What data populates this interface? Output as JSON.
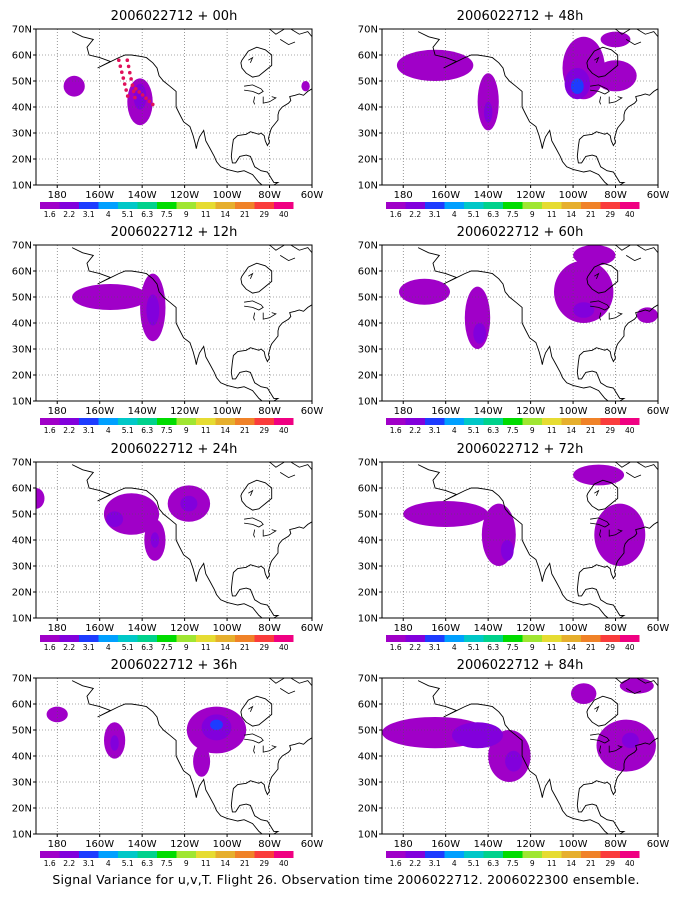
{
  "caption": "Signal Variance for u,v,T. Flight 26. Observation time 2006022712. 2006022300 ensemble.",
  "chart_data": {
    "type": "contour-map",
    "projection": "lon-lat",
    "region": {
      "lon_range": [
        170,
        300
      ],
      "lat_range": [
        10,
        70
      ]
    },
    "lon_ticks": [
      "180",
      "160W",
      "140W",
      "120W",
      "100W",
      "80W",
      "60W"
    ],
    "lat_ticks": [
      "10N",
      "20N",
      "30N",
      "40N",
      "50N",
      "60N",
      "70N"
    ],
    "colorbar": {
      "levels": [
        "1.6",
        "2.2",
        "3.1",
        "4",
        "5.1",
        "6.3",
        "7.5",
        "9",
        "11",
        "14",
        "21",
        "29",
        "40"
      ],
      "colors": [
        "#a000c8",
        "#8200dc",
        "#1e3cff",
        "#00a0ff",
        "#00c8c8",
        "#00d28c",
        "#00dc00",
        "#a0e632",
        "#e6dc32",
        "#e6af2d",
        "#f08228",
        "#fa3c3c",
        "#f00082"
      ]
    },
    "grid": true,
    "observation_track": "red dotted markers near the Gulf of Alaska in the +00h panel",
    "panels": [
      {
        "title": "2006022712 + 00h",
        "lead_hours": 0
      },
      {
        "title": "2006022712 + 48h",
        "lead_hours": 48
      },
      {
        "title": "2006022712 + 12h",
        "lead_hours": 12
      },
      {
        "title": "2006022712 + 60h",
        "lead_hours": 60
      },
      {
        "title": "2006022712 + 24h",
        "lead_hours": 24
      },
      {
        "title": "2006022712 + 72h",
        "lead_hours": 72
      },
      {
        "title": "2006022712 + 36h",
        "lead_hours": 36
      },
      {
        "title": "2006022712 + 84h",
        "lead_hours": 84
      }
    ],
    "blobs": [
      [
        {
          "lon": 188,
          "lat": 48,
          "rx": 5,
          "ry": 4,
          "level": 0
        },
        {
          "lon": 219,
          "lat": 42,
          "rx": 6,
          "ry": 9,
          "level": 0
        },
        {
          "lon": 219,
          "lat": 44,
          "rx": 3,
          "ry": 5,
          "level": 1
        },
        {
          "lon": 297,
          "lat": 48,
          "rx": 2,
          "ry": 2,
          "level": 0
        }
      ],
      [
        {
          "lon": 195,
          "lat": 56,
          "rx": 18,
          "ry": 6,
          "level": 0
        },
        {
          "lon": 220,
          "lat": 42,
          "rx": 5,
          "ry": 11,
          "level": 0
        },
        {
          "lon": 220,
          "lat": 38,
          "rx": 2,
          "ry": 4,
          "level": 1
        },
        {
          "lon": 265,
          "lat": 55,
          "rx": 10,
          "ry": 12,
          "level": 0
        },
        {
          "lon": 280,
          "lat": 52,
          "rx": 10,
          "ry": 6,
          "level": 0
        },
        {
          "lon": 262,
          "lat": 49,
          "rx": 6,
          "ry": 6,
          "level": 1
        },
        {
          "lon": 262,
          "lat": 48,
          "rx": 3,
          "ry": 3,
          "level": 2
        },
        {
          "lon": 280,
          "lat": 66,
          "rx": 7,
          "ry": 3,
          "level": 0
        }
      ],
      [
        {
          "lon": 205,
          "lat": 50,
          "rx": 18,
          "ry": 5,
          "level": 0
        },
        {
          "lon": 225,
          "lat": 46,
          "rx": 6,
          "ry": 13,
          "level": 0
        },
        {
          "lon": 225,
          "lat": 45,
          "rx": 3,
          "ry": 6,
          "level": 1
        }
      ],
      [
        {
          "lon": 190,
          "lat": 52,
          "rx": 12,
          "ry": 5,
          "level": 0
        },
        {
          "lon": 215,
          "lat": 42,
          "rx": 6,
          "ry": 12,
          "level": 0
        },
        {
          "lon": 216,
          "lat": 36,
          "rx": 3,
          "ry": 4,
          "level": 1
        },
        {
          "lon": 265,
          "lat": 52,
          "rx": 14,
          "ry": 12,
          "level": 0
        },
        {
          "lon": 265,
          "lat": 45,
          "rx": 5,
          "ry": 3,
          "level": 1
        },
        {
          "lon": 295,
          "lat": 43,
          "rx": 5,
          "ry": 3,
          "level": 0
        },
        {
          "lon": 270,
          "lat": 66,
          "rx": 10,
          "ry": 4,
          "level": 0
        }
      ],
      [
        {
          "lon": 170,
          "lat": 56,
          "rx": 4,
          "ry": 4,
          "level": 0
        },
        {
          "lon": 215,
          "lat": 50,
          "rx": 13,
          "ry": 8,
          "level": 0
        },
        {
          "lon": 207,
          "lat": 48,
          "rx": 4,
          "ry": 3,
          "level": 1
        },
        {
          "lon": 226,
          "lat": 40,
          "rx": 5,
          "ry": 8,
          "level": 0
        },
        {
          "lon": 226,
          "lat": 40,
          "rx": 2,
          "ry": 3,
          "level": 1
        },
        {
          "lon": 242,
          "lat": 54,
          "rx": 10,
          "ry": 7,
          "level": 0
        },
        {
          "lon": 242,
          "lat": 54,
          "rx": 4,
          "ry": 3,
          "level": 1
        }
      ],
      [
        {
          "lon": 200,
          "lat": 50,
          "rx": 20,
          "ry": 5,
          "level": 0
        },
        {
          "lon": 225,
          "lat": 42,
          "rx": 8,
          "ry": 12,
          "level": 0
        },
        {
          "lon": 229,
          "lat": 36,
          "rx": 3,
          "ry": 4,
          "level": 1
        },
        {
          "lon": 282,
          "lat": 42,
          "rx": 12,
          "ry": 12,
          "level": 0
        },
        {
          "lon": 272,
          "lat": 65,
          "rx": 12,
          "ry": 4,
          "level": 0
        }
      ],
      [
        {
          "lon": 180,
          "lat": 56,
          "rx": 5,
          "ry": 3,
          "level": 0
        },
        {
          "lon": 207,
          "lat": 46,
          "rx": 5,
          "ry": 7,
          "level": 0
        },
        {
          "lon": 207,
          "lat": 45,
          "rx": 2,
          "ry": 3,
          "level": 1
        },
        {
          "lon": 255,
          "lat": 50,
          "rx": 14,
          "ry": 9,
          "level": 0
        },
        {
          "lon": 255,
          "lat": 51,
          "rx": 7,
          "ry": 5,
          "level": 1
        },
        {
          "lon": 255,
          "lat": 52,
          "rx": 3,
          "ry": 2,
          "level": 2
        },
        {
          "lon": 248,
          "lat": 38,
          "rx": 4,
          "ry": 6,
          "level": 0
        }
      ],
      [
        {
          "lon": 195,
          "lat": 49,
          "rx": 25,
          "ry": 6,
          "level": 0
        },
        {
          "lon": 215,
          "lat": 48,
          "rx": 12,
          "ry": 5,
          "level": 1
        },
        {
          "lon": 230,
          "lat": 40,
          "rx": 10,
          "ry": 10,
          "level": 0
        },
        {
          "lon": 232,
          "lat": 38,
          "rx": 4,
          "ry": 4,
          "level": 1
        },
        {
          "lon": 285,
          "lat": 44,
          "rx": 14,
          "ry": 10,
          "level": 0
        },
        {
          "lon": 287,
          "lat": 46,
          "rx": 4,
          "ry": 3,
          "level": 1
        },
        {
          "lon": 265,
          "lat": 64,
          "rx": 6,
          "ry": 4,
          "level": 0
        },
        {
          "lon": 290,
          "lat": 67,
          "rx": 8,
          "ry": 3,
          "level": 0
        }
      ]
    ]
  }
}
